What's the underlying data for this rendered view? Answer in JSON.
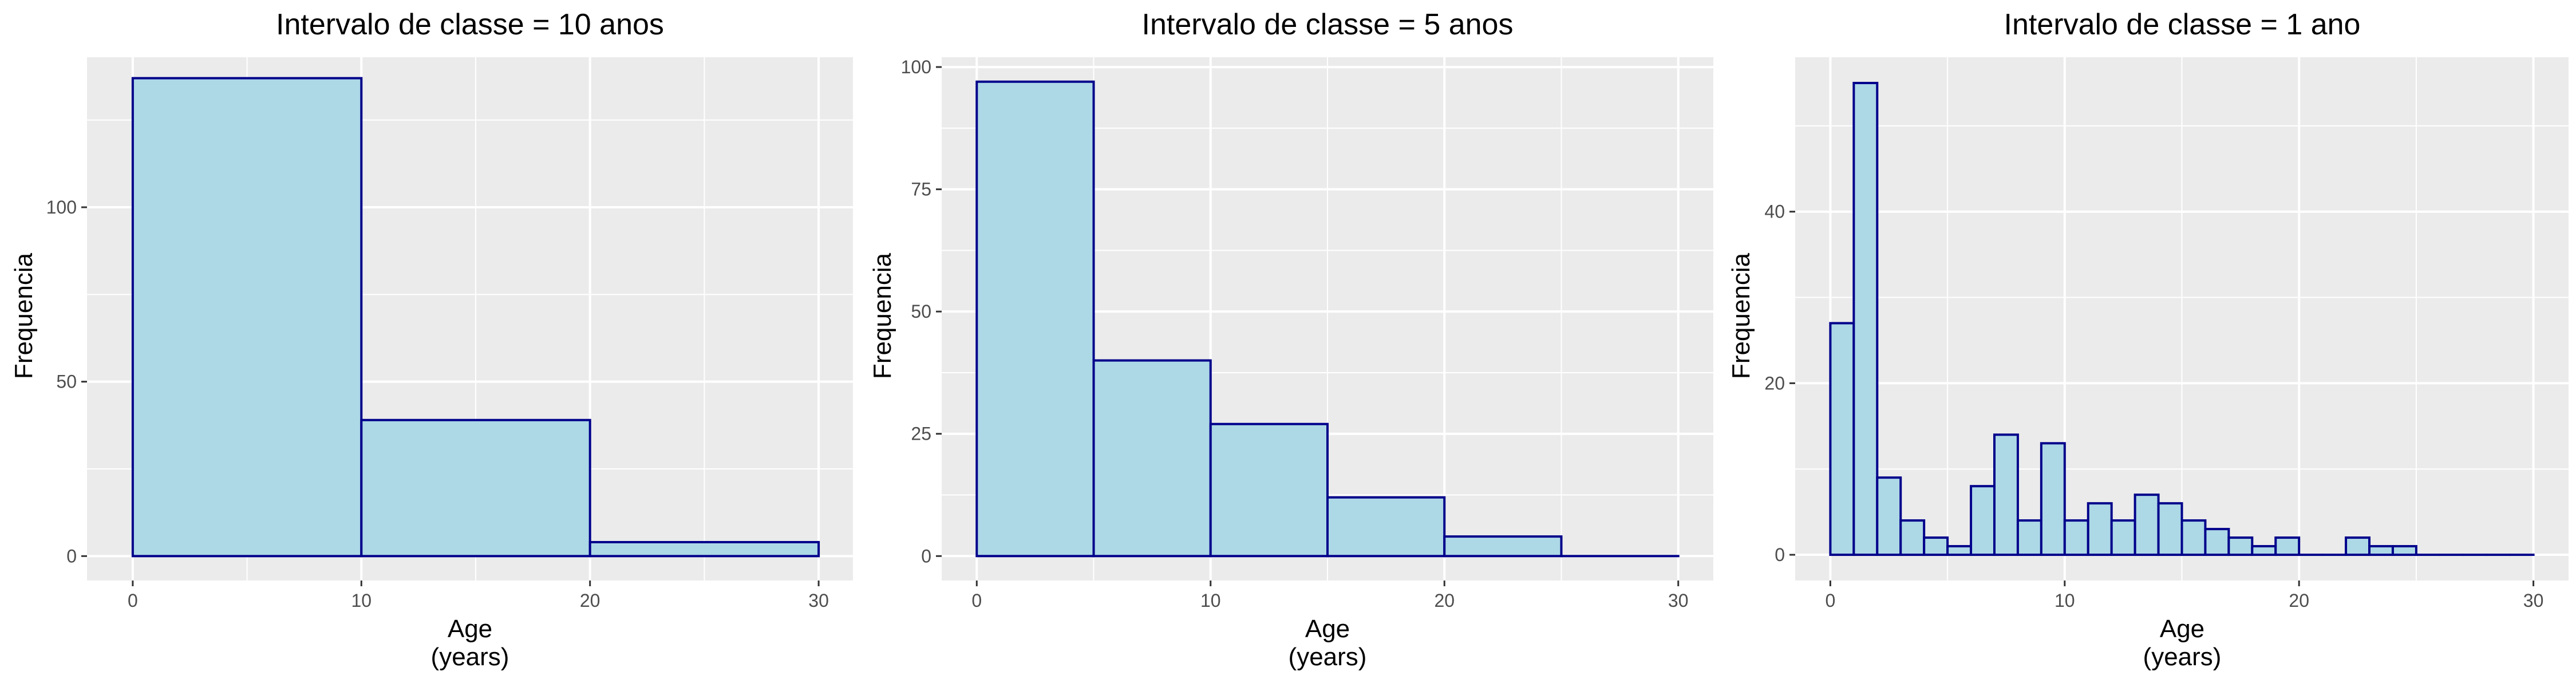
{
  "chart_data": [
    {
      "type": "bar",
      "title": "Intervalo de classe = 10 anos",
      "xlabel": "Age",
      "xlabel2": "(years)",
      "ylabel": "Frequencia",
      "xlim": [
        -2,
        31.5
      ],
      "ylim": [
        -7,
        143
      ],
      "xticks": [
        0,
        10,
        20,
        30
      ],
      "yticks": [
        0,
        50,
        100
      ],
      "bin_width": 10,
      "bins": [
        {
          "x0": 0,
          "x1": 10,
          "count": 137
        },
        {
          "x0": 10,
          "x1": 20,
          "count": 39
        },
        {
          "x0": 20,
          "x1": 30,
          "count": 4
        }
      ],
      "grid": true,
      "colors": {
        "fill": "#add8e6",
        "stroke": "#00008b",
        "panel": "#ebebeb",
        "grid": "#ffffff"
      }
    },
    {
      "type": "bar",
      "title": "Intervalo de classe = 5 anos",
      "xlabel": "Age",
      "xlabel2": "(years)",
      "ylabel": "Frequencia",
      "xlim": [
        -1.5,
        31.5
      ],
      "ylim": [
        -5,
        102
      ],
      "xticks": [
        0,
        10,
        20,
        30
      ],
      "yticks": [
        0,
        25,
        50,
        75,
        100
      ],
      "bin_width": 5,
      "bins": [
        {
          "x0": 0,
          "x1": 5,
          "count": 97
        },
        {
          "x0": 5,
          "x1": 10,
          "count": 40
        },
        {
          "x0": 10,
          "x1": 15,
          "count": 27
        },
        {
          "x0": 15,
          "x1": 20,
          "count": 12
        },
        {
          "x0": 20,
          "x1": 25,
          "count": 4
        },
        {
          "x0": 25,
          "x1": 30,
          "count": 0
        }
      ],
      "grid": true,
      "colors": {
        "fill": "#add8e6",
        "stroke": "#00008b",
        "panel": "#ebebeb",
        "grid": "#ffffff"
      }
    },
    {
      "type": "bar",
      "title": "Intervalo de classe = 1 ano",
      "xlabel": "Age",
      "xlabel2": "(years)",
      "ylabel": "Frequencia",
      "xlim": [
        -1.5,
        31.5
      ],
      "ylim": [
        -3,
        58
      ],
      "xticks": [
        0,
        10,
        20,
        30
      ],
      "yticks": [
        0,
        20,
        40
      ],
      "bin_width": 1,
      "bins": [
        {
          "x0": 0,
          "x1": 1,
          "count": 27
        },
        {
          "x0": 1,
          "x1": 2,
          "count": 55
        },
        {
          "x0": 2,
          "x1": 3,
          "count": 9
        },
        {
          "x0": 3,
          "x1": 4,
          "count": 4
        },
        {
          "x0": 4,
          "x1": 5,
          "count": 2
        },
        {
          "x0": 5,
          "x1": 6,
          "count": 1
        },
        {
          "x0": 6,
          "x1": 7,
          "count": 8
        },
        {
          "x0": 7,
          "x1": 8,
          "count": 14
        },
        {
          "x0": 8,
          "x1": 9,
          "count": 4
        },
        {
          "x0": 9,
          "x1": 10,
          "count": 13
        },
        {
          "x0": 10,
          "x1": 11,
          "count": 4
        },
        {
          "x0": 11,
          "x1": 12,
          "count": 6
        },
        {
          "x0": 12,
          "x1": 13,
          "count": 4
        },
        {
          "x0": 13,
          "x1": 14,
          "count": 7
        },
        {
          "x0": 14,
          "x1": 15,
          "count": 6
        },
        {
          "x0": 15,
          "x1": 16,
          "count": 4
        },
        {
          "x0": 16,
          "x1": 17,
          "count": 3
        },
        {
          "x0": 17,
          "x1": 18,
          "count": 2
        },
        {
          "x0": 18,
          "x1": 19,
          "count": 1
        },
        {
          "x0": 19,
          "x1": 20,
          "count": 2
        },
        {
          "x0": 20,
          "x1": 21,
          "count": 0
        },
        {
          "x0": 21,
          "x1": 22,
          "count": 0
        },
        {
          "x0": 22,
          "x1": 23,
          "count": 2
        },
        {
          "x0": 23,
          "x1": 24,
          "count": 1
        },
        {
          "x0": 24,
          "x1": 25,
          "count": 1
        },
        {
          "x0": 25,
          "x1": 26,
          "count": 0
        },
        {
          "x0": 26,
          "x1": 27,
          "count": 0
        },
        {
          "x0": 27,
          "x1": 28,
          "count": 0
        },
        {
          "x0": 28,
          "x1": 29,
          "count": 0
        },
        {
          "x0": 29,
          "x1": 30,
          "count": 0
        }
      ],
      "grid": true,
      "colors": {
        "fill": "#add8e6",
        "stroke": "#00008b",
        "panel": "#ebebeb",
        "grid": "#ffffff"
      }
    }
  ]
}
